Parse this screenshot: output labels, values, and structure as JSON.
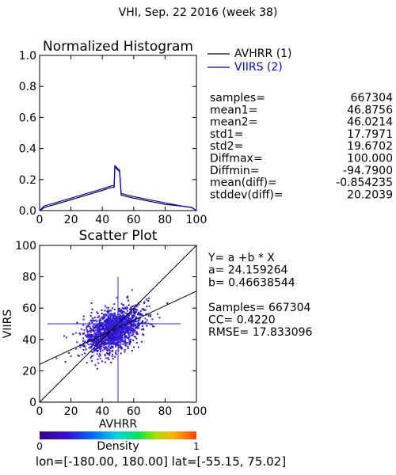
{
  "page_title": "VHI,  Sep. 22 2016 (week 38)",
  "footer": "lon=[-180.00, 180.00] lat=[-55.15, 75.02]",
  "colors": {
    "series1": "#000000",
    "series2": "#0000cc",
    "frame": "#000000",
    "fit_line": "#000000",
    "crosshair": "#2d2dcc"
  },
  "histogram": {
    "title": "Normalized Histogram",
    "legend": [
      {
        "label": "AVHRR (1)",
        "color": "#000000"
      },
      {
        "label": "VIIRS (2)",
        "color": "#0000cc"
      }
    ],
    "stats": [
      {
        "label": "samples=",
        "value": "667304"
      },
      {
        "label": "mean1=",
        "value": "46.8756"
      },
      {
        "label": "mean2=",
        "value": "46.0214"
      },
      {
        "label": "std1=",
        "value": "17.7971"
      },
      {
        "label": "std2=",
        "value": "19.6702"
      },
      {
        "label": "Diffmax=",
        "value": "100.000"
      },
      {
        "label": "Diffmin=",
        "value": "-94.7900"
      },
      {
        "label": "mean(diff)=",
        "value": "-0.854235"
      },
      {
        "label": "stddev(diff)=",
        "value": "20.2039"
      }
    ]
  },
  "scatter": {
    "title": "Scatter Plot",
    "fit_text": [
      "Y= a +b * X",
      "a= 24.159264",
      "b= 0.46638544",
      "",
      "Samples= 667304",
      "CC=  0.4220",
      "RMSE= 17.833096"
    ]
  },
  "colorbar": {
    "label": "Density",
    "min_label": "0",
    "max_label": "1"
  },
  "chart_data": [
    {
      "type": "line",
      "title": "Normalized Histogram",
      "xlabel": "",
      "ylabel": "",
      "xlim": [
        0,
        100
      ],
      "ylim": [
        0,
        1.0
      ],
      "xticks": [
        0,
        20,
        40,
        60,
        80,
        100
      ],
      "yticks": [
        0.0,
        0.2,
        0.4,
        0.6,
        0.8,
        1.0
      ],
      "ytick_labels": [
        "0.0",
        "0.2",
        "0.4",
        "0.6",
        "0.8",
        "1.0"
      ],
      "series": [
        {
          "name": "AVHRR (1)",
          "color": "#000000",
          "x": [
            0,
            3,
            10,
            20,
            30,
            40,
            46,
            47.5,
            48,
            50,
            51,
            52,
            56,
            60,
            70,
            80,
            90,
            97,
            100
          ],
          "y": [
            0.0,
            0.02,
            0.04,
            0.07,
            0.1,
            0.13,
            0.15,
            0.15,
            0.28,
            0.26,
            0.25,
            0.1,
            0.09,
            0.08,
            0.06,
            0.04,
            0.03,
            0.02,
            0.0
          ]
        },
        {
          "name": "VIIRS (2)",
          "color": "#0000cc",
          "x": [
            0,
            3,
            10,
            20,
            30,
            40,
            46,
            47.5,
            48,
            50,
            51,
            52,
            56,
            60,
            70,
            80,
            90,
            97,
            100
          ],
          "y": [
            0.0,
            0.03,
            0.05,
            0.08,
            0.11,
            0.14,
            0.16,
            0.16,
            0.29,
            0.27,
            0.26,
            0.11,
            0.1,
            0.09,
            0.07,
            0.05,
            0.03,
            0.02,
            0.0
          ]
        }
      ]
    },
    {
      "type": "scatter",
      "title": "Scatter Plot",
      "xlabel": "AVHRR",
      "ylabel": "VIIRS",
      "xlim": [
        0,
        100
      ],
      "ylim": [
        0,
        100
      ],
      "xticks": [
        0,
        20,
        40,
        60,
        80,
        100
      ],
      "yticks": [
        0,
        20,
        40,
        60,
        80,
        100
      ],
      "point_cloud": {
        "center": [
          47,
          46
        ],
        "sd": [
          9,
          7
        ],
        "corr": 0.45,
        "count": 1700
      },
      "fit_line": {
        "intercept": 24.159264,
        "slope": 0.46638544
      },
      "identity_line": true,
      "crosshair": {
        "x": 50,
        "y": 50,
        "x_range": [
          5,
          90
        ],
        "y_range": [
          0,
          80
        ]
      }
    }
  ]
}
